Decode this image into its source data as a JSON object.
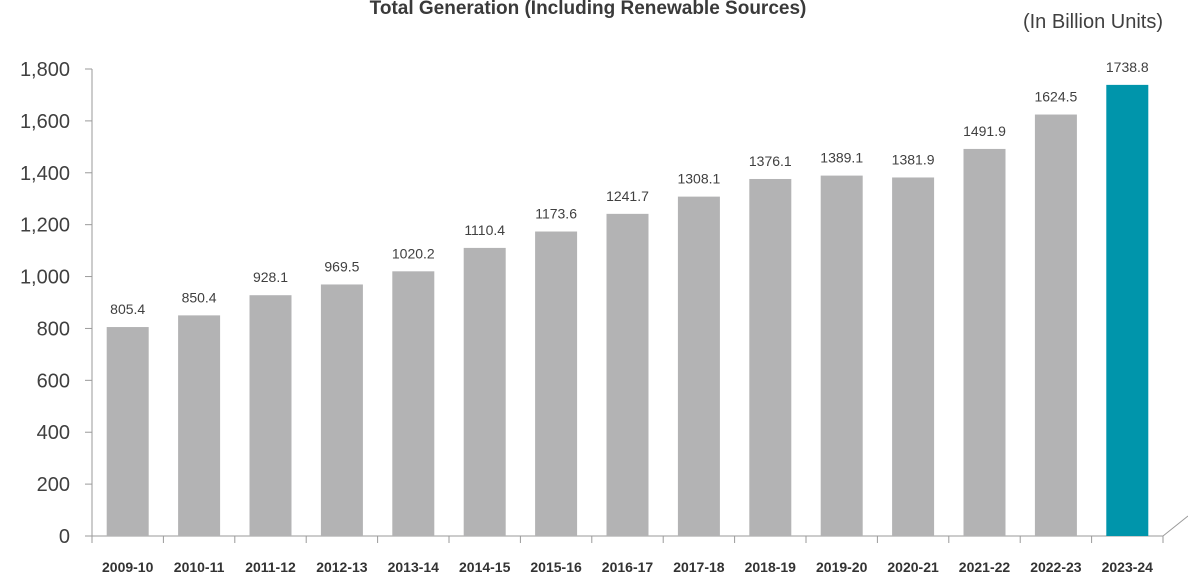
{
  "chart_data": {
    "type": "bar",
    "title": "Total Generation (Including Renewable Sources)",
    "unit_label": "(In Billion Units)",
    "xlabel": "",
    "ylabel": "",
    "ylim": [
      0,
      1800
    ],
    "yticks": [
      0,
      200,
      400,
      600,
      800,
      1000,
      1200,
      1400,
      1600,
      1800
    ],
    "ytick_labels": [
      "0",
      "200",
      "400",
      "600",
      "800",
      "1,000",
      "1,200",
      "1,400",
      "1,600",
      "1,800"
    ],
    "categories": [
      "2009-10",
      "2010-11",
      "2011-12",
      "2012-13",
      "2013-14",
      "2014-15",
      "2015-16",
      "2016-17",
      "2017-18",
      "2018-19",
      "2019-20",
      "2020-21",
      "2021-22",
      "2022-23",
      "2023-24"
    ],
    "values": [
      805.4,
      850.4,
      928.1,
      969.5,
      1020.2,
      1110.4,
      1173.6,
      1241.7,
      1308.1,
      1376.1,
      1389.1,
      1381.9,
      1491.9,
      1624.5,
      1738.8
    ],
    "data_labels": [
      "805.4",
      "850.4",
      "928.1",
      "969.5",
      "1020.2",
      "1110.4",
      "1173.6",
      "1241.7",
      "1308.1",
      "1376.1",
      "1389.1",
      "1381.9",
      "1491.9",
      "1624.5",
      "1738.8"
    ],
    "grid": false,
    "legend": "none",
    "colors": {
      "bar": "#b3b3b4",
      "highlight": "#0095ab",
      "axis": "#9a9a9a"
    },
    "highlight_index": 14
  }
}
